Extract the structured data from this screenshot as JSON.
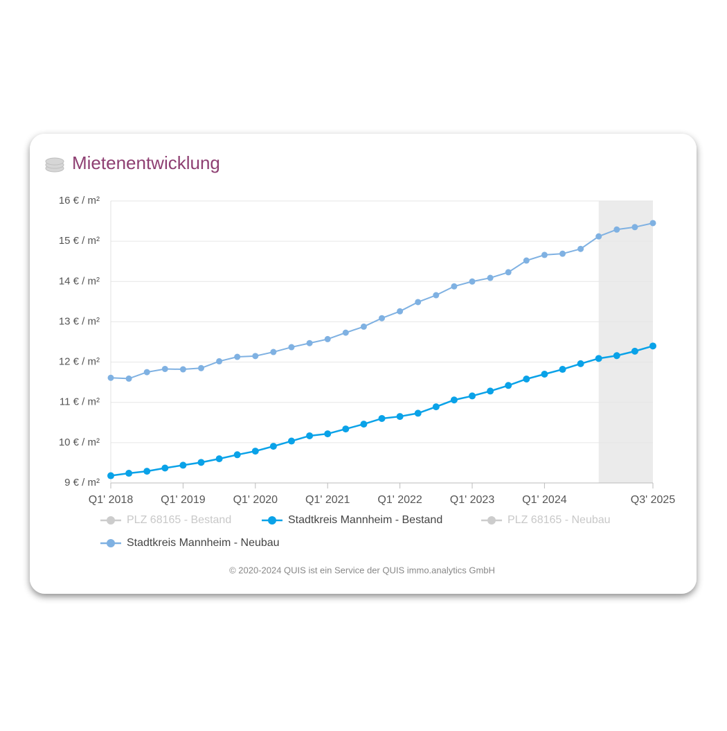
{
  "chart_data": {
    "type": "line",
    "title": "Mietenentwicklung",
    "footer": "© 2020-2024 QUIS ist ein Service der QUIS immo.analytics GmbH",
    "categories": [
      "Q1' 2018",
      null,
      null,
      null,
      "Q1' 2019",
      null,
      null,
      null,
      "Q1' 2020",
      null,
      null,
      null,
      "Q1' 2021",
      null,
      null,
      null,
      "Q1' 2022",
      null,
      null,
      null,
      "Q1' 2023",
      null,
      null,
      null,
      "Q1' 2024",
      null,
      null,
      null,
      null,
      null,
      "Q3' 2025"
    ],
    "series": [
      {
        "name": "PLZ 68165 - Bestand",
        "color": "#cccccc",
        "visible": false
      },
      {
        "name": "Stadtkreis Mannheim - Bestand",
        "color": "#0aa2e8",
        "visible": true,
        "values": [
          9.18,
          9.24,
          9.29,
          9.37,
          9.44,
          9.51,
          9.6,
          9.7,
          9.79,
          9.91,
          10.04,
          10.17,
          10.22,
          10.34,
          10.46,
          10.6,
          10.65,
          10.73,
          10.89,
          11.06,
          11.16,
          11.28,
          11.42,
          11.58,
          11.7,
          11.82,
          11.96,
          12.09,
          12.16,
          12.27,
          12.4
        ]
      },
      {
        "name": "PLZ 68165 - Neubau",
        "color": "#cccccc",
        "visible": false
      },
      {
        "name": "Stadtkreis Mannheim - Neubau",
        "color": "#7fb1e2",
        "visible": true,
        "values": [
          11.61,
          11.59,
          11.75,
          11.83,
          11.82,
          11.85,
          12.02,
          12.13,
          12.15,
          12.25,
          12.37,
          12.47,
          12.57,
          12.73,
          12.88,
          13.09,
          13.26,
          13.49,
          13.66,
          13.88,
          14.0,
          14.09,
          14.23,
          14.52,
          14.66,
          14.69,
          14.81,
          15.12,
          15.29,
          15.35,
          15.45
        ]
      }
    ],
    "highlight_x": [
      27,
      30
    ],
    "ylim": [
      9,
      16
    ],
    "yticks": [
      {
        "value": 9,
        "label": "9 € / m²"
      },
      {
        "value": 10,
        "label": "10 € / m²"
      },
      {
        "value": 11,
        "label": "11 € / m²"
      },
      {
        "value": 12,
        "label": "12 € / m²"
      },
      {
        "value": 13,
        "label": "13 € / m²"
      },
      {
        "value": 14,
        "label": "14 € / m²"
      },
      {
        "value": 15,
        "label": "15 € / m²"
      },
      {
        "value": 16,
        "label": "16 € / m²"
      }
    ],
    "grid": true
  }
}
